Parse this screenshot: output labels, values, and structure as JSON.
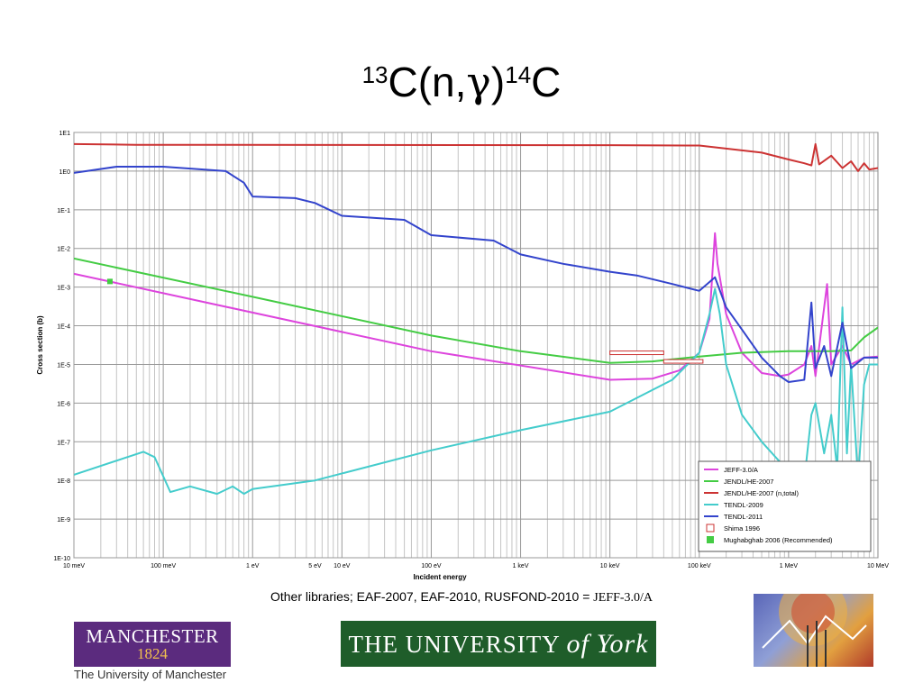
{
  "title": {
    "pre_sup": "13",
    "text1": "C(n,",
    "gamma": "γ",
    "text2": ")",
    "post_sup": "14",
    "text3": "C"
  },
  "note": {
    "text": "Other libraries; EAF-2007, EAF-2010, RUSFOND-2010 = ",
    "serif_text": "JEFF-3.0/A"
  },
  "logos": {
    "manchester_line1": "MANCHESTER",
    "manchester_line2": "1824",
    "manchester_sub": "The University of Manchester",
    "york_text": "THE UNIVERSITY",
    "york_of": "of",
    "york_name": "York"
  },
  "chart_data": {
    "type": "line",
    "xlabel": "Incident energy",
    "ylabel": "Cross section (b)",
    "xscale": "log",
    "yscale": "log",
    "xlim": [
      0.01,
      10000000
    ],
    "ylim": [
      1e-10,
      10
    ],
    "x_ticks": [
      {
        "v": 0.01,
        "label": "10 meV"
      },
      {
        "v": 0.1,
        "label": "100 meV"
      },
      {
        "v": 1,
        "label": "1 eV"
      },
      {
        "v": 5,
        "label": "5 eV"
      },
      {
        "v": 10,
        "label": "10 eV"
      },
      {
        "v": 100,
        "label": "100 eV"
      },
      {
        "v": 1000,
        "label": "1 keV"
      },
      {
        "v": 10000,
        "label": "10 keV"
      },
      {
        "v": 100000,
        "label": "100 keV"
      },
      {
        "v": 1000000,
        "label": "1 MeV"
      },
      {
        "v": 10000000,
        "label": "10 MeV"
      }
    ],
    "y_ticks": [
      {
        "v": 10,
        "label": "1E1"
      },
      {
        "v": 1,
        "label": "1E0"
      },
      {
        "v": 0.1,
        "label": "1E-1"
      },
      {
        "v": 0.01,
        "label": "1E-2"
      },
      {
        "v": 0.001,
        "label": "1E-3"
      },
      {
        "v": 0.0001,
        "label": "1E-4"
      },
      {
        "v": 1e-05,
        "label": "1E-5"
      },
      {
        "v": 1e-06,
        "label": "1E-6"
      },
      {
        "v": 1e-07,
        "label": "1E-7"
      },
      {
        "v": 1e-08,
        "label": "1E-8"
      },
      {
        "v": 1e-09,
        "label": "1E-9"
      },
      {
        "v": 1e-10,
        "label": "1E-10"
      }
    ],
    "grid": true,
    "legend_position": "bottom-right",
    "series": [
      {
        "name": "JEFF-3.0/A",
        "color": "#dd44dd",
        "points": [
          [
            0.01,
            0.0022
          ],
          [
            0.025,
            0.0014
          ],
          [
            1,
            0.00022
          ],
          [
            100,
            2.2e-05
          ],
          [
            10000,
            4e-06
          ],
          [
            30000,
            4.3e-06
          ],
          [
            60000,
            7e-06
          ],
          [
            100000,
            2e-05
          ],
          [
            130000,
            0.00015
          ],
          [
            150000,
            0.025
          ],
          [
            160000,
            0.004
          ],
          [
            200000,
            0.0002
          ],
          [
            300000,
            2e-05
          ],
          [
            500000,
            6e-06
          ],
          [
            800000,
            5e-06
          ],
          [
            1000000,
            5.5e-06
          ],
          [
            1500000,
            1e-05
          ],
          [
            1800000,
            3e-05
          ],
          [
            2000000,
            5e-06
          ],
          [
            2700000,
            0.0012
          ],
          [
            3000000,
            1e-05
          ],
          [
            4000000,
            3e-05
          ],
          [
            5000000,
            1e-05
          ],
          [
            7000000,
            1.5e-05
          ],
          [
            10000000,
            1.6e-05
          ]
        ]
      },
      {
        "name": "JENDL/HE-2007",
        "color": "#44cc44",
        "points": [
          [
            0.01,
            0.0055
          ],
          [
            1,
            0.00056
          ],
          [
            100,
            5.6e-05
          ],
          [
            1000,
            2.2e-05
          ],
          [
            10000,
            1.1e-05
          ],
          [
            30000,
            1.2e-05
          ],
          [
            100000,
            1.6e-05
          ],
          [
            300000,
            2e-05
          ],
          [
            1000000,
            2.2e-05
          ],
          [
            3000000,
            2.2e-05
          ],
          [
            5000000,
            2.3e-05
          ],
          [
            7000000,
            5e-05
          ],
          [
            10000000,
            9e-05
          ]
        ]
      },
      {
        "name": "JENDL/HE-2007 (n,total)",
        "color": "#cc3333",
        "points": [
          [
            0.01,
            5.0
          ],
          [
            0.05,
            4.8
          ],
          [
            10000,
            4.7
          ],
          [
            100000,
            4.6
          ],
          [
            500000,
            3.0
          ],
          [
            1000000,
            2.0
          ],
          [
            1500000,
            1.6
          ],
          [
            1800000,
            1.4
          ],
          [
            2000000,
            5.0
          ],
          [
            2200000,
            1.5
          ],
          [
            3000000,
            2.5
          ],
          [
            4000000,
            1.2
          ],
          [
            5000000,
            1.8
          ],
          [
            6000000,
            1.0
          ],
          [
            7000000,
            1.6
          ],
          [
            8000000,
            1.1
          ],
          [
            10000000,
            1.2
          ]
        ]
      },
      {
        "name": "TENDL-2009",
        "color": "#44cccc",
        "points": [
          [
            0.01,
            1.4e-08
          ],
          [
            0.06,
            5.5e-08
          ],
          [
            0.08,
            4e-08
          ],
          [
            0.12,
            5e-09
          ],
          [
            0.2,
            7e-09
          ],
          [
            0.4,
            4.5e-09
          ],
          [
            0.6,
            7e-09
          ],
          [
            0.8,
            4.5e-09
          ],
          [
            1,
            6e-09
          ],
          [
            5,
            1e-08
          ],
          [
            100,
            6e-08
          ],
          [
            1000,
            2e-07
          ],
          [
            10000,
            6e-07
          ],
          [
            50000,
            4e-06
          ],
          [
            100000,
            2e-05
          ],
          [
            130000,
            0.0002
          ],
          [
            150000,
            0.0009
          ],
          [
            170000,
            0.0002
          ],
          [
            200000,
            1e-05
          ],
          [
            300000,
            5e-07
          ],
          [
            500000,
            1e-07
          ],
          [
            800000,
            3e-08
          ],
          [
            1000000,
            2e-08
          ],
          [
            1500000,
            1e-08
          ],
          [
            1800000,
            5e-07
          ],
          [
            2000000,
            1e-06
          ],
          [
            2500000,
            5e-08
          ],
          [
            3000000,
            5e-07
          ],
          [
            3500000,
            2e-08
          ],
          [
            4000000,
            0.0003
          ],
          [
            4500000,
            5e-08
          ],
          [
            5000000,
            1e-05
          ],
          [
            6000000,
            1e-08
          ],
          [
            7000000,
            3e-06
          ],
          [
            8000000,
            1e-05
          ],
          [
            10000000,
            1e-05
          ]
        ]
      },
      {
        "name": "TENDL-2011",
        "color": "#3344cc",
        "points": [
          [
            0.01,
            0.9
          ],
          [
            0.03,
            1.3
          ],
          [
            0.1,
            1.3
          ],
          [
            0.5,
            1.0
          ],
          [
            0.8,
            0.5
          ],
          [
            1,
            0.22
          ],
          [
            3,
            0.2
          ],
          [
            5,
            0.15
          ],
          [
            10,
            0.07
          ],
          [
            50,
            0.055
          ],
          [
            100,
            0.022
          ],
          [
            500,
            0.016
          ],
          [
            1000,
            0.007
          ],
          [
            3000,
            0.004
          ],
          [
            10000,
            0.0025
          ],
          [
            20000,
            0.002
          ],
          [
            50000,
            0.0012
          ],
          [
            100000,
            0.0008
          ],
          [
            150000,
            0.0018
          ],
          [
            200000,
            0.0003
          ],
          [
            300000,
            8e-05
          ],
          [
            500000,
            1.5e-05
          ],
          [
            800000,
            5e-06
          ],
          [
            1000000,
            3.5e-06
          ],
          [
            1500000,
            4e-06
          ],
          [
            1800000,
            0.0004
          ],
          [
            2000000,
            8e-06
          ],
          [
            2500000,
            3e-05
          ],
          [
            3000000,
            5e-06
          ],
          [
            4000000,
            0.00012
          ],
          [
            5000000,
            8e-06
          ],
          [
            7000000,
            1.5e-05
          ],
          [
            10000000,
            1.5e-05
          ]
        ]
      }
    ],
    "markers": [
      {
        "name": "Shima 1996",
        "type": "hollow-box",
        "color": "#cc3333",
        "points": [
          {
            "x0": 10000,
            "x1": 40000,
            "y": 2e-05
          },
          {
            "x0": 40000,
            "x1": 110000,
            "y": 1.2e-05
          }
        ]
      },
      {
        "name": "Mughabghab 2006 (Recommended)",
        "type": "filled-square",
        "color": "#44cc44",
        "points": [
          {
            "x": 0.0253,
            "y": 0.0014
          }
        ]
      }
    ]
  }
}
